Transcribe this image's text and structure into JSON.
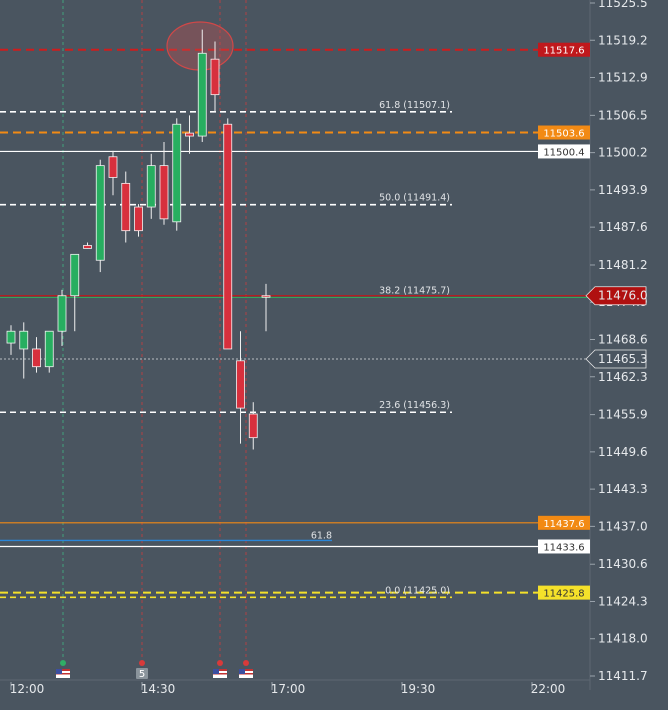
{
  "chart_data": {
    "type": "candlestick",
    "y_axis": {
      "ticks": [
        "11525.5",
        "11519.2",
        "11512.9",
        "11506.5",
        "11500.2",
        "11493.9",
        "11487.6",
        "11481.2",
        "11474.9",
        "11468.6",
        "11462.3",
        "11455.9",
        "11449.6",
        "11443.3",
        "11437.0",
        "11430.6",
        "11424.3",
        "11418.0",
        "11411.7"
      ]
    },
    "x_axis": {
      "ticks": [
        "12:00",
        "14:30",
        "17:00",
        "19:30",
        "22:00"
      ]
    },
    "candles": [
      {
        "open": 11468.0,
        "high": 11471.0,
        "low": 11466.0,
        "close": 11470.0,
        "color": "up"
      },
      {
        "open": 11470.0,
        "high": 11471.5,
        "low": 11462.0,
        "close": 11467.0,
        "color": "up"
      },
      {
        "open": 11467.0,
        "high": 11469.0,
        "low": 11463.0,
        "close": 11464.0,
        "color": "down"
      },
      {
        "open": 11464.0,
        "high": 11470.0,
        "low": 11463.0,
        "close": 11470.0,
        "color": "up"
      },
      {
        "open": 11470.0,
        "high": 11477.0,
        "low": 11467.5,
        "close": 11476.0,
        "color": "up"
      },
      {
        "open": 11476.0,
        "high": 11483.0,
        "low": 11470.0,
        "close": 11483.0,
        "color": "up"
      },
      {
        "open": 11484.0,
        "high": 11485.0,
        "low": 11484.0,
        "close": 11484.5,
        "color": "down"
      },
      {
        "open": 11482.0,
        "high": 11499.0,
        "low": 11480.0,
        "close": 11498.0,
        "color": "up"
      },
      {
        "open": 11499.5,
        "high": 11500.5,
        "low": 11493.0,
        "close": 11496.0,
        "color": "down"
      },
      {
        "open": 11495.0,
        "high": 11497.0,
        "low": 11485.0,
        "close": 11487.0,
        "color": "down"
      },
      {
        "open": 11487.0,
        "high": 11491.5,
        "low": 11486.0,
        "close": 11491.0,
        "color": "down"
      },
      {
        "open": 11491.0,
        "high": 11500.0,
        "low": 11489.0,
        "close": 11498.0,
        "color": "up"
      },
      {
        "open": 11498.0,
        "high": 11502.0,
        "low": 11488.0,
        "close": 11489.0,
        "color": "down"
      },
      {
        "open": 11488.5,
        "high": 11506.0,
        "low": 11487.0,
        "close": 11505.0,
        "color": "up"
      },
      {
        "open": 11503.5,
        "high": 11506.5,
        "low": 11500.0,
        "close": 11503.0,
        "color": "down"
      },
      {
        "open": 11503.0,
        "high": 11521.0,
        "low": 11502.0,
        "close": 11517.0,
        "color": "up"
      },
      {
        "open": 11516.0,
        "high": 11519.0,
        "low": 11507.0,
        "close": 11510.0,
        "color": "down"
      },
      {
        "open": 11505.0,
        "high": 11506.0,
        "low": 11467.0,
        "close": 11467.0,
        "color": "down"
      },
      {
        "open": 11465.0,
        "high": 11470.0,
        "low": 11451.0,
        "close": 11457.0,
        "color": "down"
      },
      {
        "open": 11456.0,
        "high": 11458.0,
        "low": 11450.0,
        "close": 11452.0,
        "color": "down"
      },
      {
        "open": 11476.0,
        "high": 11478.0,
        "low": 11470.0,
        "close": 11476.0,
        "color": "down"
      }
    ],
    "fibonacci_levels": [
      {
        "label": "61.8 (11507.1)",
        "value": 11507.1
      },
      {
        "label": "50.0 (11491.4)",
        "value": 11491.4
      },
      {
        "label": "38.2 (11475.7)",
        "value": 11475.7
      },
      {
        "label": "23.6 (11456.3)",
        "value": 11456.3
      },
      {
        "label": "0.0 (11425.0)",
        "value": 11425.0
      }
    ],
    "fib_marker": {
      "label": "61.8",
      "value": 11433.6
    },
    "horizontal_lines": [
      {
        "value": 11517.6,
        "label": "11517.6",
        "color": "#d01c1c",
        "style": "dashed",
        "tag_bg": "#c0181c",
        "tag_fg": "#ffffff"
      },
      {
        "value": 11503.6,
        "label": "11503.6",
        "color": "#f28a14",
        "style": "dashed",
        "tag_bg": "#f28a14",
        "tag_fg": "#ffffff"
      },
      {
        "value": 11500.4,
        "label": "11500.4",
        "color": "#ffffff",
        "style": "solid",
        "tag_bg": "#ffffff",
        "tag_fg": "#333333"
      },
      {
        "value": 11476.0,
        "label": "11476.0",
        "color": "#c01818",
        "style": "solid",
        "tag_bg": "#b01010",
        "tag_fg": "#ffffff",
        "arrow": true
      },
      {
        "value": 11465.3,
        "label": "11465.3",
        "color": "#dfe3e6",
        "style": "dotted",
        "tag_bg": "#4a5560",
        "tag_fg": "#ffffff",
        "arrow": true
      },
      {
        "value": 11437.6,
        "label": "11437.6",
        "color": "#f28a14",
        "style": "solid",
        "tag_bg": "#f28a14",
        "tag_fg": "#ffffff"
      },
      {
        "value": 11433.6,
        "label": "11433.6",
        "color": "#ffffff",
        "style": "solid",
        "tag_bg": "#ffffff",
        "tag_fg": "#333333"
      },
      {
        "value": 11425.8,
        "label": "11425.8",
        "color": "#f5e12a",
        "style": "dashed",
        "tag_bg": "#f5e12a",
        "tag_fg": "#333333"
      }
    ],
    "event_markers": [
      {
        "kind": "flag",
        "color": "#2fae66"
      },
      {
        "kind": "badge",
        "text": "5",
        "color": "#d83a3a"
      },
      {
        "kind": "flag",
        "color": "#d83a3a"
      },
      {
        "kind": "flag",
        "color": "#d83a3a"
      }
    ],
    "colors": {
      "background": "#4a5560",
      "up": "#27ae60",
      "down": "#d7303d",
      "axis_text": "#e6e9ec"
    }
  }
}
